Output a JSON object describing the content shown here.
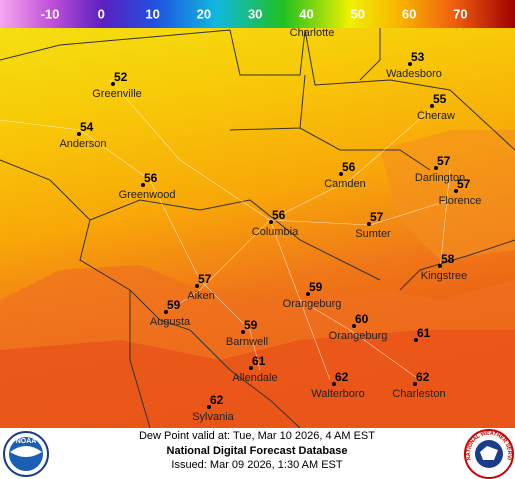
{
  "colorbar": {
    "ticks": [
      -10,
      0,
      10,
      20,
      30,
      40,
      50,
      60,
      70
    ]
  },
  "places": [
    {
      "name": "Charlotte"
    },
    {
      "name": "Wadesboro",
      "value": "53"
    },
    {
      "name": "Greenville",
      "value": "52"
    },
    {
      "name": "Cheraw",
      "value": "55"
    },
    {
      "name": "Anderson",
      "value": "54"
    },
    {
      "name": "Camden",
      "value": "56"
    },
    {
      "name": "Darlington",
      "value": "57"
    },
    {
      "name": "Florence",
      "value": "57"
    },
    {
      "name": "Greenwood",
      "value": "56"
    },
    {
      "name": "Columbia",
      "value": "56"
    },
    {
      "name": "Sumter",
      "value": "57"
    },
    {
      "name": "Kingstree",
      "value": "58"
    },
    {
      "name": "Aiken",
      "value": "57"
    },
    {
      "name": "Orangeburg",
      "value": "59"
    },
    {
      "name": "Augusta",
      "value": "59"
    },
    {
      "name": "Barnwell",
      "value": "59"
    },
    {
      "name": "Orangeburg",
      "value": "60"
    },
    {
      "value": "61"
    },
    {
      "name": "Allendale",
      "value": "61"
    },
    {
      "name": "Walterboro",
      "value": "62"
    },
    {
      "name": "Charleston",
      "value": "62"
    },
    {
      "name": "Sylvania",
      "value": "62"
    }
  ],
  "footer": {
    "valid": "Dew Point valid at: Tue, Mar 10 2026, 4 AM EST",
    "source": "National Digital Forecast Database",
    "issued": "Issued: Mar 09 2026, 1:30 AM EST"
  },
  "logos": {
    "left": "NOAA",
    "right": "NATIONAL WEATHER SERVICE"
  }
}
